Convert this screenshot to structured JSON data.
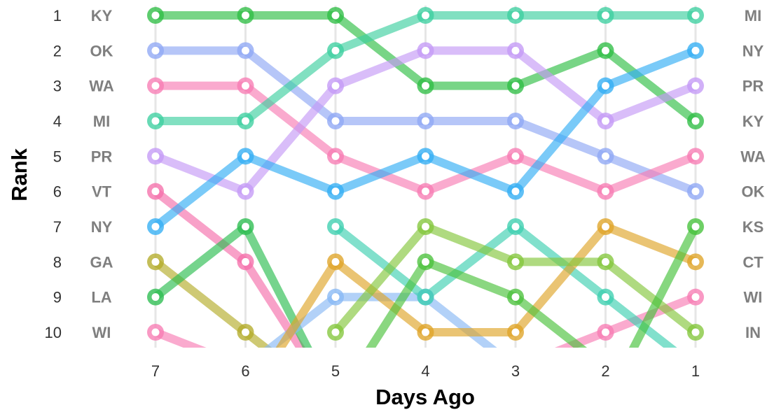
{
  "chart_data": {
    "type": "line",
    "subtype": "bump",
    "xlabel": "Days Ago",
    "ylabel": "Rank",
    "x_categories": [
      "7",
      "6",
      "5",
      "4",
      "3",
      "2",
      "1"
    ],
    "y_ticks": [
      "1",
      "2",
      "3",
      "4",
      "5",
      "6",
      "7",
      "8",
      "9",
      "10"
    ],
    "ylim": [
      1,
      10
    ],
    "y_reversed": true,
    "grid": "vertical",
    "legend": "none",
    "left_labels": [
      "KY",
      "OK",
      "WA",
      "MI",
      "PR",
      "VT",
      "NY",
      "GA",
      "LA",
      "WI"
    ],
    "right_labels": [
      "MI",
      "NY",
      "PR",
      "KY",
      "WA",
      "OK",
      "KS",
      "CT",
      "WI",
      "IN"
    ],
    "series": [
      {
        "name": "KY",
        "color": "#2fbe45",
        "values": [
          1,
          1,
          1,
          3,
          3,
          2,
          4
        ]
      },
      {
        "name": "OK",
        "color": "#8fa8f5",
        "values": [
          2,
          2,
          4,
          4,
          4,
          5,
          6
        ]
      },
      {
        "name": "WA",
        "color": "#f77cb4",
        "values": [
          3,
          3,
          5,
          6,
          5,
          6,
          5
        ]
      },
      {
        "name": "MI",
        "color": "#3ecfa0",
        "values": [
          4,
          4,
          2,
          1,
          1,
          1,
          1
        ]
      },
      {
        "name": "PR",
        "color": "#c49af6",
        "values": [
          5,
          6,
          3,
          2,
          2,
          4,
          3
        ]
      },
      {
        "name": "VT",
        "color": "#f56faa",
        "values": [
          6,
          8,
          12,
          null,
          null,
          null,
          null
        ]
      },
      {
        "name": "NY",
        "color": "#33aef4",
        "values": [
          7,
          5,
          6,
          5,
          6,
          3,
          2
        ]
      },
      {
        "name": "GA",
        "color": "#b3ac2a",
        "values": [
          8,
          10,
          12,
          null,
          null,
          null,
          null
        ]
      },
      {
        "name": "LA",
        "color": "#2bbd50",
        "values": [
          9,
          7,
          12,
          null,
          null,
          null,
          null
        ]
      },
      {
        "name": "WI",
        "color": "#f77cb4",
        "values": [
          10,
          11,
          null,
          null,
          11,
          10,
          9
        ]
      },
      {
        "name": "",
        "color": "#88b8f5",
        "values": [
          null,
          11,
          9,
          9,
          11,
          null,
          null
        ]
      },
      {
        "name": "",
        "color": "#3ecfb0",
        "values": [
          null,
          null,
          7,
          9,
          7,
          9,
          11
        ]
      },
      {
        "name": "CT",
        "color": "#dfa428",
        "values": [
          null,
          12,
          8,
          10,
          10,
          7,
          8
        ]
      },
      {
        "name": "",
        "color": "#4cc23c",
        "values": [
          null,
          null,
          12,
          8,
          9,
          11,
          null
        ]
      },
      {
        "name": "IN",
        "color": "#84c63c",
        "values": [
          null,
          null,
          10,
          7,
          8,
          8,
          10
        ]
      },
      {
        "name": "KS",
        "color": "#45c23a",
        "values": [
          null,
          null,
          null,
          null,
          null,
          12,
          7
        ]
      }
    ]
  }
}
